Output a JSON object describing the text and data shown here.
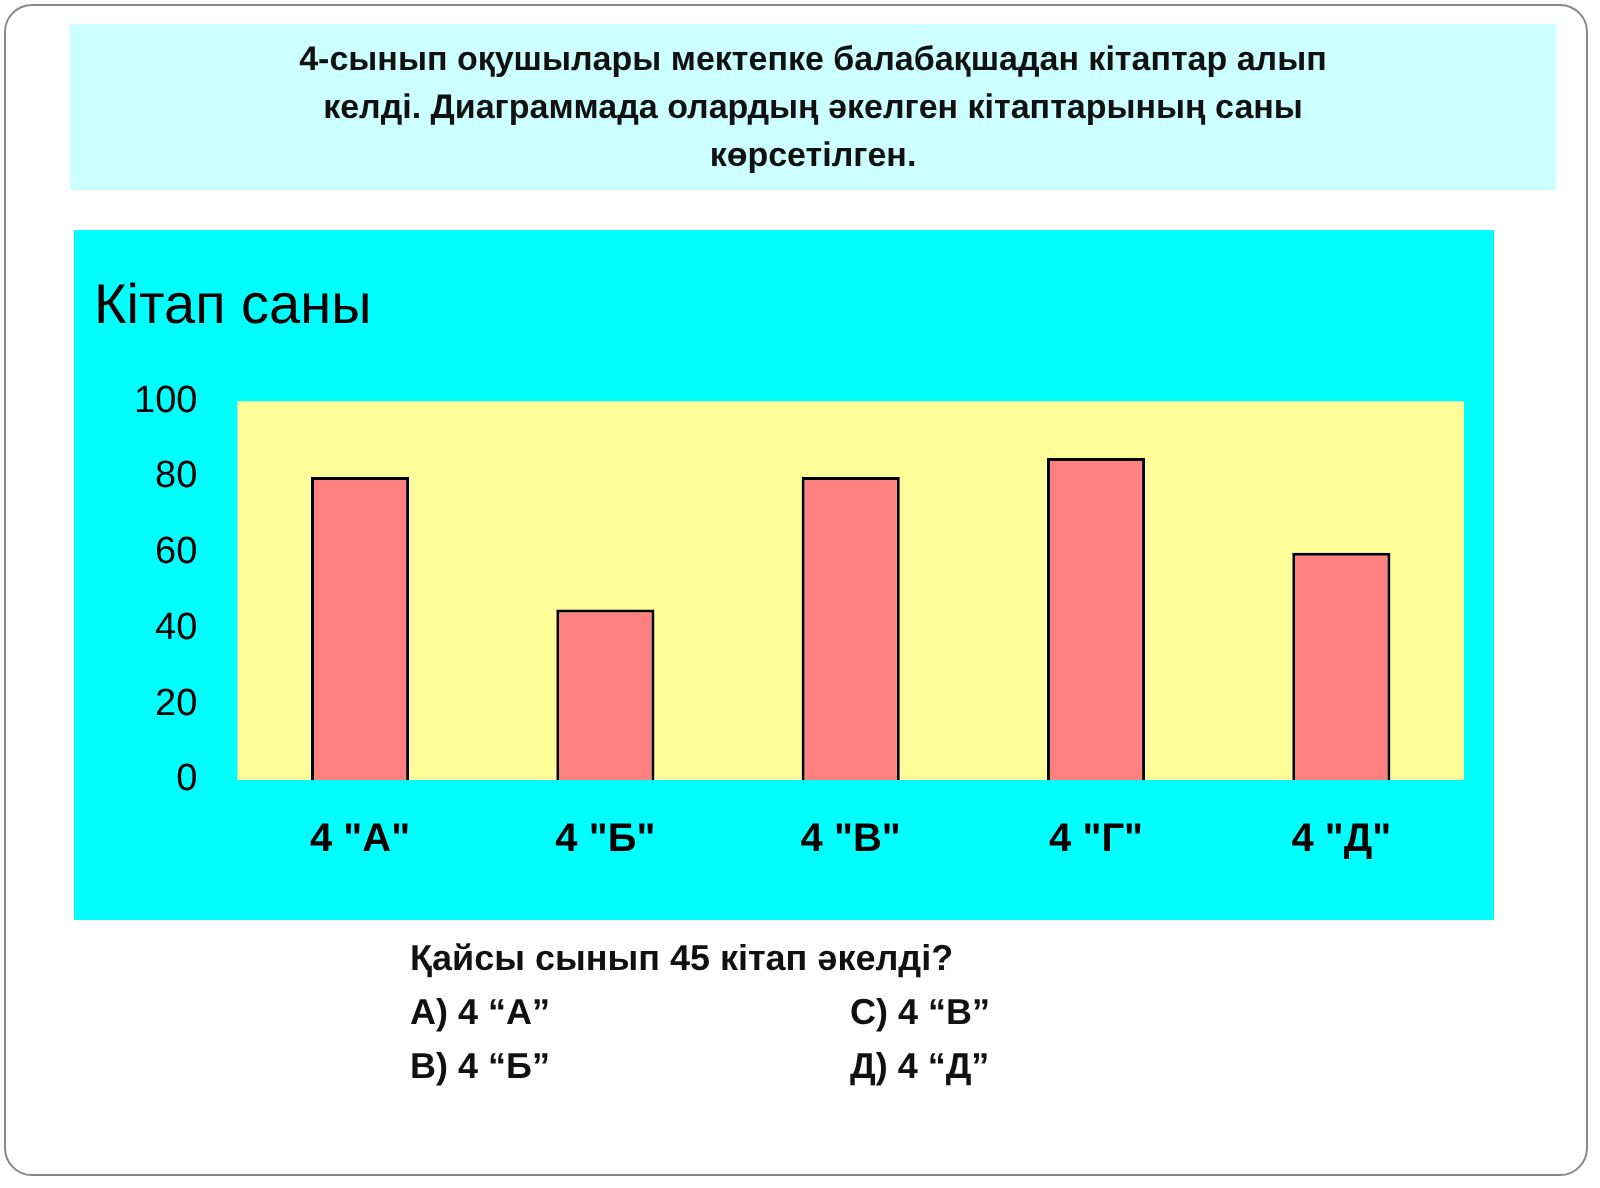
{
  "chart_data": {
    "type": "bar",
    "title": "Кітап саны",
    "subtitle": "4-сынып  оқушылары мектепке балабақшадан кітаптар алып келді.  Диаграммада олардың әкелген кітаптарының  саны көрсетілген.",
    "categories": [
      "4 \"А\"",
      "4 \"Б\"",
      "4 \"В\"",
      "4 \"Г\"",
      "4 \"Д\""
    ],
    "values": [
      80,
      45,
      80,
      85,
      60
    ],
    "color": "#ff8080",
    "ylim": [
      0,
      100
    ],
    "yticks": [
      0,
      20,
      40,
      60,
      80,
      100
    ],
    "grid": false,
    "legend": false,
    "annotations": [
      "Қайсы сынып 45 кітап әкелді?",
      "А)  4 “А”",
      "С)  4 “В”",
      "В)  4 “Б”",
      "Д)  4 “Д”"
    ]
  }
}
